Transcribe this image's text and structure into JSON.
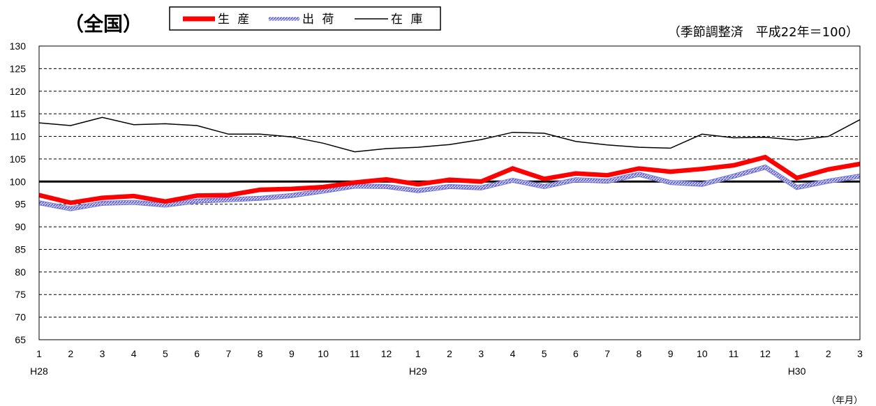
{
  "header": {
    "title": "（全国）",
    "note": "（季節調整済　平成22年＝100）",
    "x_unit": "（年月）"
  },
  "colors": {
    "production": "#ff0000",
    "shipment": "#7b7bd6",
    "inventory": "#000000",
    "baseline": "#000000",
    "grid": "#000000"
  },
  "chart_data": {
    "type": "line",
    "title": "（全国）",
    "note": "（季節調整済　平成22年＝100）",
    "xlabel": "（年月）",
    "ylabel": "",
    "ylim": [
      65,
      130
    ],
    "ytick_step": 5,
    "yticks": [
      "65",
      "70",
      "75",
      "80",
      "85",
      "90",
      "95",
      "100",
      "105",
      "110",
      "115",
      "120",
      "125",
      "130"
    ],
    "grid": "horizontal dashed",
    "legend": "top-center",
    "reference_line": 100,
    "categories": [
      "1",
      "2",
      "3",
      "4",
      "5",
      "6",
      "7",
      "8",
      "9",
      "10",
      "11",
      "12",
      "1",
      "2",
      "3",
      "4",
      "5",
      "6",
      "7",
      "8",
      "9",
      "10",
      "11",
      "12",
      "1",
      "2",
      "3"
    ],
    "year_labels": [
      {
        "index": 0,
        "label": "H28"
      },
      {
        "index": 12,
        "label": "H29"
      },
      {
        "index": 24,
        "label": "H30"
      }
    ],
    "series": [
      {
        "name": "生 産",
        "style": "thick",
        "values": [
          97.0,
          95.3,
          96.4,
          96.8,
          95.6,
          96.9,
          97.0,
          98.2,
          98.4,
          98.8,
          99.8,
          100.5,
          99.4,
          100.4,
          100.0,
          102.9,
          100.6,
          101.8,
          101.4,
          102.9,
          102.2,
          102.8,
          103.6,
          105.4,
          100.8,
          102.7,
          103.9
        ]
      },
      {
        "name": "出 荷",
        "style": "hatched",
        "values": [
          95.3,
          94.0,
          95.2,
          95.4,
          94.8,
          95.7,
          96.0,
          96.3,
          96.9,
          97.9,
          99.0,
          98.9,
          98.0,
          98.9,
          98.6,
          100.3,
          98.9,
          100.4,
          100.1,
          101.6,
          99.8,
          99.4,
          101.2,
          103.2,
          98.7,
          100.1,
          101.2
        ]
      },
      {
        "name": "在 庫",
        "style": "thin",
        "values": [
          113.0,
          112.4,
          114.2,
          112.6,
          112.8,
          112.4,
          110.5,
          110.5,
          109.9,
          108.5,
          106.6,
          107.3,
          107.6,
          108.2,
          109.3,
          110.9,
          110.7,
          108.9,
          108.1,
          107.6,
          107.4,
          110.5,
          109.7,
          109.8,
          109.2,
          110.0,
          113.7
        ]
      }
    ]
  }
}
